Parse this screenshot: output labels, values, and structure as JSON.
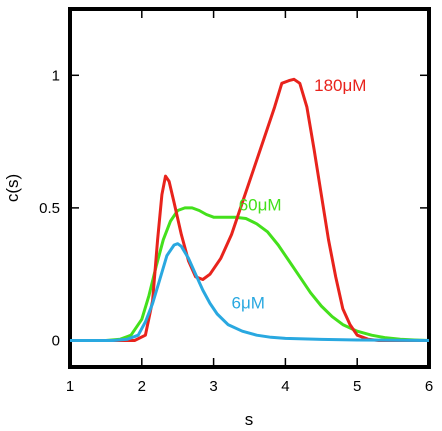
{
  "chart_data": {
    "type": "line",
    "xlabel": "s",
    "ylabel": "c(s)",
    "xlim": [
      1,
      6
    ],
    "ylim": [
      -0.1,
      1.25
    ],
    "xticks": [
      1,
      2,
      3,
      4,
      5,
      6
    ],
    "yticks": [
      0,
      0.5,
      1
    ],
    "ytick_labels": [
      "0",
      "0.5",
      "1"
    ],
    "grid": false,
    "series": [
      {
        "name": "180μM",
        "color": "#e8231c",
        "label_at": [
          4.4,
          0.94
        ],
        "points": [
          [
            1.0,
            0
          ],
          [
            1.6,
            0
          ],
          [
            1.9,
            0
          ],
          [
            2.05,
            0.02
          ],
          [
            2.15,
            0.15
          ],
          [
            2.22,
            0.38
          ],
          [
            2.28,
            0.55
          ],
          [
            2.33,
            0.62
          ],
          [
            2.38,
            0.6
          ],
          [
            2.45,
            0.52
          ],
          [
            2.55,
            0.4
          ],
          [
            2.65,
            0.3
          ],
          [
            2.75,
            0.24
          ],
          [
            2.85,
            0.23
          ],
          [
            2.95,
            0.25
          ],
          [
            3.1,
            0.31
          ],
          [
            3.25,
            0.4
          ],
          [
            3.4,
            0.52
          ],
          [
            3.55,
            0.64
          ],
          [
            3.7,
            0.76
          ],
          [
            3.85,
            0.88
          ],
          [
            3.95,
            0.97
          ],
          [
            4.05,
            0.98
          ],
          [
            4.12,
            0.985
          ],
          [
            4.2,
            0.97
          ],
          [
            4.3,
            0.88
          ],
          [
            4.4,
            0.72
          ],
          [
            4.5,
            0.55
          ],
          [
            4.6,
            0.38
          ],
          [
            4.7,
            0.24
          ],
          [
            4.8,
            0.12
          ],
          [
            4.9,
            0.06
          ],
          [
            5.0,
            0.02
          ],
          [
            5.15,
            0.005
          ],
          [
            5.3,
            0
          ],
          [
            6.0,
            0
          ]
        ]
      },
      {
        "name": "60μM",
        "color": "#44e01c",
        "label_at": [
          3.35,
          0.49
        ],
        "points": [
          [
            1.0,
            0
          ],
          [
            1.5,
            0
          ],
          [
            1.7,
            0.005
          ],
          [
            1.85,
            0.02
          ],
          [
            2.0,
            0.08
          ],
          [
            2.1,
            0.17
          ],
          [
            2.2,
            0.28
          ],
          [
            2.3,
            0.38
          ],
          [
            2.4,
            0.45
          ],
          [
            2.5,
            0.49
          ],
          [
            2.6,
            0.5
          ],
          [
            2.7,
            0.5
          ],
          [
            2.8,
            0.49
          ],
          [
            2.9,
            0.475
          ],
          [
            3.0,
            0.465
          ],
          [
            3.15,
            0.465
          ],
          [
            3.3,
            0.465
          ],
          [
            3.45,
            0.46
          ],
          [
            3.6,
            0.44
          ],
          [
            3.75,
            0.41
          ],
          [
            3.9,
            0.36
          ],
          [
            4.05,
            0.3
          ],
          [
            4.2,
            0.24
          ],
          [
            4.35,
            0.18
          ],
          [
            4.5,
            0.13
          ],
          [
            4.65,
            0.09
          ],
          [
            4.8,
            0.06
          ],
          [
            5.0,
            0.035
          ],
          [
            5.2,
            0.02
          ],
          [
            5.4,
            0.01
          ],
          [
            5.6,
            0.005
          ],
          [
            5.8,
            0.002
          ],
          [
            6.0,
            0
          ]
        ]
      },
      {
        "name": "6μM",
        "color": "#29a8e0",
        "label_at": [
          3.25,
          0.12
        ],
        "points": [
          [
            1.0,
            0
          ],
          [
            1.6,
            0
          ],
          [
            1.8,
            0.005
          ],
          [
            1.95,
            0.02
          ],
          [
            2.05,
            0.07
          ],
          [
            2.15,
            0.14
          ],
          [
            2.25,
            0.23
          ],
          [
            2.35,
            0.32
          ],
          [
            2.45,
            0.36
          ],
          [
            2.5,
            0.365
          ],
          [
            2.55,
            0.355
          ],
          [
            2.65,
            0.31
          ],
          [
            2.75,
            0.25
          ],
          [
            2.85,
            0.19
          ],
          [
            2.95,
            0.14
          ],
          [
            3.05,
            0.1
          ],
          [
            3.2,
            0.06
          ],
          [
            3.4,
            0.035
          ],
          [
            3.6,
            0.02
          ],
          [
            3.8,
            0.012
          ],
          [
            4.0,
            0.008
          ],
          [
            4.5,
            0.004
          ],
          [
            5.0,
            0.002
          ],
          [
            6.0,
            0
          ]
        ]
      }
    ]
  }
}
